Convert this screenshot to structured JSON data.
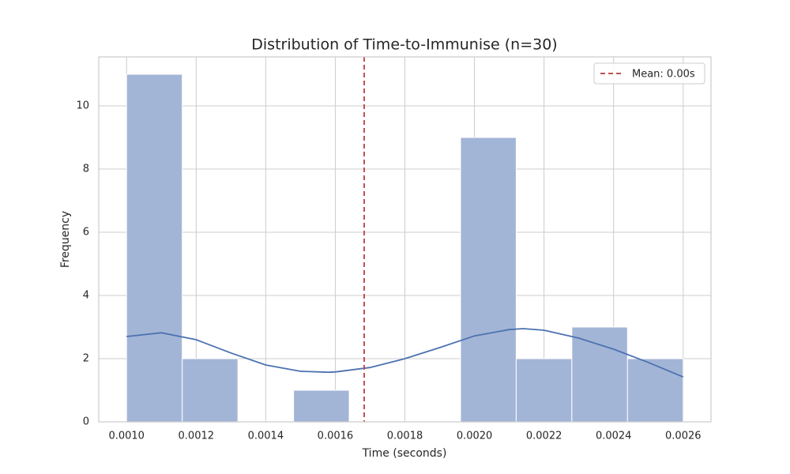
{
  "chart_data": {
    "type": "histogram",
    "title": "Distribution of Time-to-Immunise (n=30)",
    "xlabel": "Time (seconds)",
    "ylabel": "Frequency",
    "bins": [
      0.001,
      0.00116,
      0.00132,
      0.00148,
      0.00164,
      0.0018,
      0.00196,
      0.00212,
      0.00228,
      0.00244,
      0.0026
    ],
    "values": [
      11,
      2,
      0,
      1,
      0,
      0,
      9,
      2,
      3,
      2
    ],
    "color": "#a3b5d6",
    "kde": {
      "color": "#4c72b0",
      "x": [
        0.001,
        0.0011,
        0.0012,
        0.0013,
        0.0014,
        0.0015,
        0.00158,
        0.0016,
        0.0017,
        0.0018,
        0.0019,
        0.002,
        0.0021,
        0.00214,
        0.0022,
        0.0023,
        0.0024,
        0.0025,
        0.0026
      ],
      "y": [
        2.7,
        2.82,
        2.6,
        2.18,
        1.8,
        1.6,
        1.57,
        1.58,
        1.72,
        2.0,
        2.35,
        2.72,
        2.92,
        2.95,
        2.9,
        2.65,
        2.3,
        1.88,
        1.42
      ]
    },
    "mean": {
      "value": 0.001683,
      "label": "Mean: 0.00s",
      "color": "#c44e52"
    },
    "xlim": [
      0.00092,
      0.00268
    ],
    "xticks": [
      {
        "value": 0.001,
        "label": "0.0010"
      },
      {
        "value": 0.0012,
        "label": "0.0012"
      },
      {
        "value": 0.0014,
        "label": "0.0014"
      },
      {
        "value": 0.0016,
        "label": "0.0016"
      },
      {
        "value": 0.0018,
        "label": "0.0018"
      },
      {
        "value": 0.002,
        "label": "0.0020"
      },
      {
        "value": 0.0022,
        "label": "0.0022"
      },
      {
        "value": 0.0024,
        "label": "0.0024"
      },
      {
        "value": 0.0026,
        "label": "0.0026"
      }
    ],
    "ylim": [
      0,
      11.55
    ],
    "yticks": [
      0,
      2,
      4,
      6,
      8,
      10
    ],
    "grid": true,
    "legend": "upper right"
  }
}
